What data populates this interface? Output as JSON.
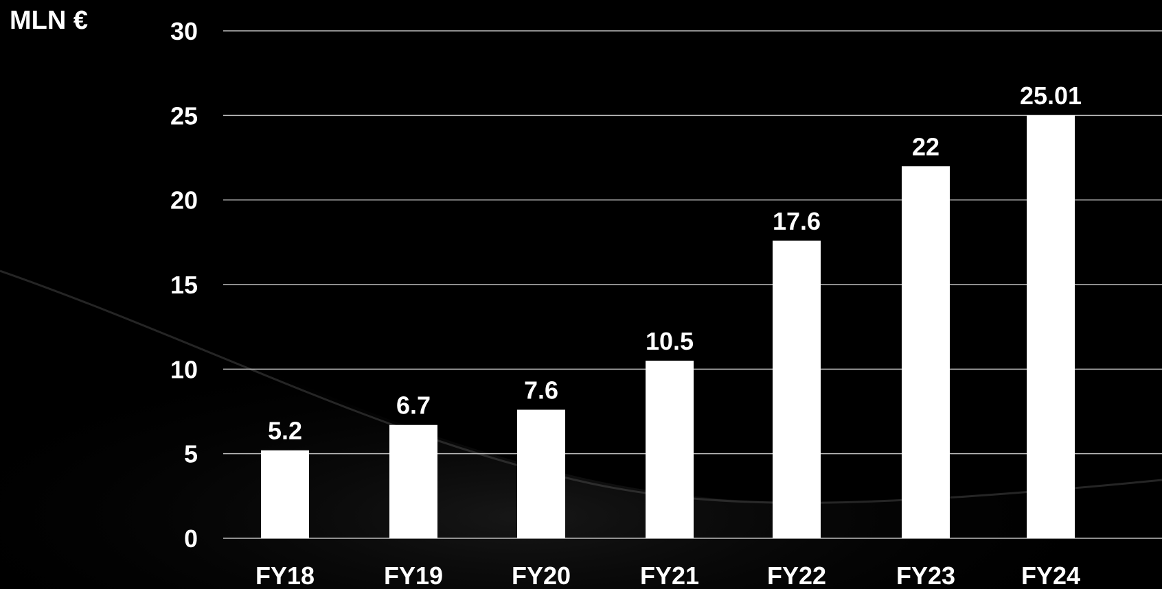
{
  "chart_data": {
    "type": "bar",
    "title": "",
    "ylabel": "MLN €",
    "xlabel": "",
    "categories": [
      "FY18",
      "FY19",
      "FY20",
      "FY21",
      "FY22",
      "FY23",
      "FY24"
    ],
    "values": [
      5.2,
      6.7,
      7.6,
      10.5,
      17.6,
      22,
      25.01
    ],
    "value_labels": [
      "5.2",
      "6.7",
      "7.6",
      "10.5",
      "17.6",
      "22",
      "25.01"
    ],
    "ylim": [
      0,
      30
    ],
    "yticks": [
      0,
      5,
      10,
      15,
      20,
      25,
      30
    ],
    "grid": true,
    "legend": "none"
  },
  "colors": {
    "background": "#000000",
    "bar": "#ffffff",
    "gridline": "#bdbdbd",
    "text": "#ffffff"
  }
}
